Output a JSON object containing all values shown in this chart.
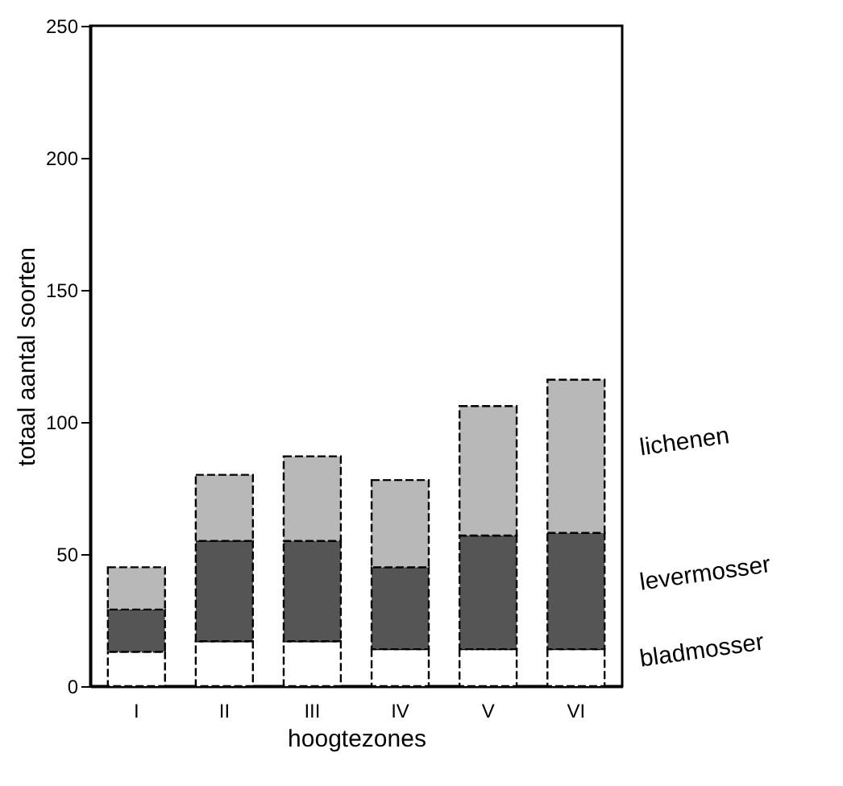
{
  "chart_data": {
    "type": "bar",
    "stacked": true,
    "xlabel": "hoogtezones",
    "ylabel": "totaal aantal soorten",
    "categories": [
      "I",
      "II",
      "III",
      "IV",
      "V",
      "VI"
    ],
    "series": [
      {
        "name": "bladmosser",
        "color": "#ffffff",
        "values": [
          13,
          17,
          17,
          14,
          14,
          14
        ]
      },
      {
        "name": "levermosser",
        "color": "#555555",
        "values": [
          16,
          38,
          38,
          31,
          43,
          44
        ]
      },
      {
        "name": "lichenen",
        "color": "#b8b8b8",
        "values": [
          16,
          25,
          32,
          33,
          49,
          58
        ]
      }
    ],
    "ylim": [
      0,
      250
    ],
    "yticks": [
      0,
      50,
      100,
      150,
      200,
      250
    ],
    "grid": false,
    "legend": false
  }
}
